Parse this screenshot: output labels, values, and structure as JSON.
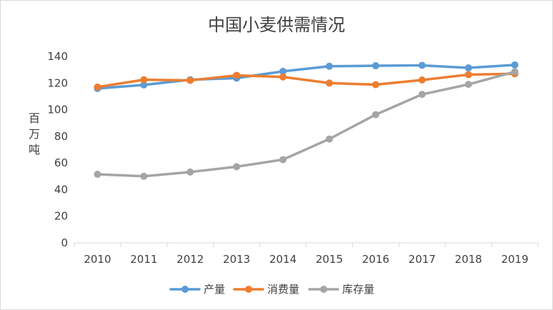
{
  "chart_data": {
    "type": "line",
    "title": "中国小麦供需情况",
    "xlabel": "",
    "ylabel": "百万吨",
    "categories": [
      "2010",
      "2011",
      "2012",
      "2013",
      "2014",
      "2015",
      "2016",
      "2017",
      "2018",
      "2019"
    ],
    "ylim": [
      0,
      140
    ],
    "yticks": [
      "0",
      "20",
      "40",
      "60",
      "80",
      "100",
      "120",
      "140"
    ],
    "grid": false,
    "legend_position": "bottom",
    "series": [
      {
        "name": "产量",
        "color": "#5B9BD5",
        "values": [
          115.9,
          118.6,
          122.5,
          123.7,
          128.8,
          132.6,
          133.0,
          133.3,
          131.4,
          133.6
        ]
      },
      {
        "name": "消费量",
        "color": "#ED7D31",
        "values": [
          117.0,
          122.5,
          122.0,
          125.8,
          124.6,
          120.0,
          118.8,
          122.3,
          126.3,
          127.0
        ]
      },
      {
        "name": "库存量",
        "color": "#A5A5A5",
        "values": [
          51.5,
          50.0,
          53.2,
          57.2,
          62.5,
          78.0,
          96.3,
          111.5,
          119.0,
          128.5
        ]
      }
    ]
  }
}
